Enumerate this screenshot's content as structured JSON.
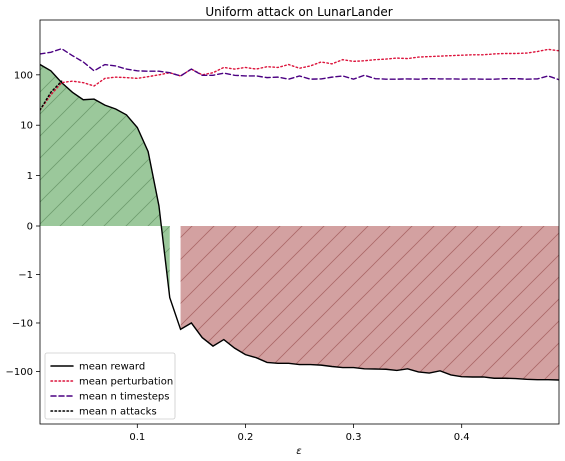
{
  "chart_data": {
    "type": "line",
    "title": "Uniform attack on LunarLander",
    "xlabel": "ε",
    "ylabel": "",
    "xlim": [
      0.01,
      0.49
    ],
    "yscale": "symlog",
    "xticks": [
      0.1,
      0.2,
      0.3,
      0.4
    ],
    "xtick_labels": [
      "0.1",
      "0.2",
      "0.3",
      "0.4"
    ],
    "yticks": [
      -100,
      -10,
      -1,
      0,
      1,
      10,
      100
    ],
    "ytick_labels": [
      "−100",
      "−10",
      "−1",
      "0",
      "1",
      "10",
      "100"
    ],
    "grid": false,
    "legend_position": "lower-left",
    "fills": [
      {
        "name": "positive-reward-region",
        "color": "#2e8b2e",
        "hatch": "/",
        "x_range": [
          0.01,
          0.13
        ]
      },
      {
        "name": "negative-reward-region",
        "color": "#a33b3b",
        "hatch": "/",
        "x_range": [
          0.14,
          0.49
        ]
      }
    ],
    "series": [
      {
        "name": "mean reward",
        "color": "#000000",
        "style": "solid",
        "x": [
          0.01,
          0.02,
          0.03,
          0.04,
          0.05,
          0.06,
          0.07,
          0.08,
          0.09,
          0.1,
          0.11,
          0.12,
          0.13,
          0.14,
          0.15,
          0.16,
          0.17,
          0.18,
          0.19,
          0.2,
          0.21,
          0.22,
          0.23,
          0.24,
          0.25,
          0.26,
          0.27,
          0.28,
          0.29,
          0.3,
          0.31,
          0.32,
          0.33,
          0.34,
          0.35,
          0.36,
          0.37,
          0.38,
          0.39,
          0.4,
          0.41,
          0.42,
          0.43,
          0.44,
          0.45,
          0.46,
          0.47,
          0.48,
          0.49
        ],
        "y": [
          160,
          120,
          70,
          45,
          32,
          33,
          25,
          21,
          16,
          9,
          3,
          0.4,
          -3,
          -13.5,
          -10,
          -20,
          -30,
          -22,
          -33,
          -45,
          -52,
          -65,
          -68,
          -68,
          -72,
          -72,
          -74,
          -79,
          -83,
          -83,
          -88,
          -89,
          -90,
          -95,
          -88,
          -102,
          -108,
          -97,
          -118,
          -128,
          -130,
          -130,
          -138,
          -138,
          -140,
          -145,
          -148,
          -148,
          -150
        ]
      },
      {
        "name": "mean perturbation",
        "color": "#dc143c",
        "style": "dotted",
        "x": [
          0.01,
          0.02,
          0.03,
          0.04,
          0.05,
          0.06,
          0.07,
          0.08,
          0.09,
          0.1,
          0.11,
          0.12,
          0.13,
          0.14,
          0.15,
          0.16,
          0.17,
          0.18,
          0.19,
          0.2,
          0.21,
          0.22,
          0.23,
          0.24,
          0.25,
          0.26,
          0.27,
          0.28,
          0.29,
          0.3,
          0.31,
          0.32,
          0.33,
          0.34,
          0.35,
          0.36,
          0.37,
          0.38,
          0.39,
          0.4,
          0.41,
          0.42,
          0.43,
          0.44,
          0.45,
          0.46,
          0.47,
          0.48,
          0.49
        ],
        "y": [
          20,
          40,
          70,
          75,
          70,
          60,
          85,
          90,
          88,
          85,
          92,
          100,
          110,
          95,
          130,
          100,
          110,
          140,
          130,
          140,
          130,
          145,
          140,
          160,
          135,
          150,
          180,
          165,
          200,
          185,
          190,
          200,
          205,
          215,
          210,
          225,
          230,
          235,
          240,
          245,
          250,
          250,
          260,
          265,
          265,
          270,
          290,
          320,
          300
        ]
      },
      {
        "name": "mean n timesteps",
        "color": "#4b0082",
        "style": "dashed",
        "x": [
          0.01,
          0.02,
          0.03,
          0.04,
          0.05,
          0.06,
          0.07,
          0.08,
          0.09,
          0.1,
          0.11,
          0.12,
          0.13,
          0.14,
          0.15,
          0.16,
          0.17,
          0.18,
          0.19,
          0.2,
          0.21,
          0.22,
          0.23,
          0.24,
          0.25,
          0.26,
          0.27,
          0.28,
          0.29,
          0.3,
          0.31,
          0.32,
          0.33,
          0.34,
          0.35,
          0.36,
          0.37,
          0.38,
          0.39,
          0.4,
          0.41,
          0.42,
          0.43,
          0.44,
          0.45,
          0.46,
          0.47,
          0.48,
          0.49
        ],
        "y": [
          260,
          280,
          330,
          240,
          180,
          120,
          160,
          150,
          130,
          120,
          118,
          118,
          110,
          95,
          130,
          98,
          98,
          108,
          98,
          95,
          95,
          88,
          90,
          82,
          95,
          82,
          83,
          90,
          95,
          82,
          98,
          84,
          82,
          82,
          83,
          82,
          84,
          83,
          83,
          82,
          83,
          82,
          82,
          84,
          84,
          82,
          83,
          95,
          80
        ]
      },
      {
        "name": "mean n attacks",
        "color": "#000000",
        "style": "dotted",
        "x": [
          0.01,
          0.02,
          0.03
        ],
        "y": [
          20,
          45,
          75
        ]
      }
    ]
  }
}
